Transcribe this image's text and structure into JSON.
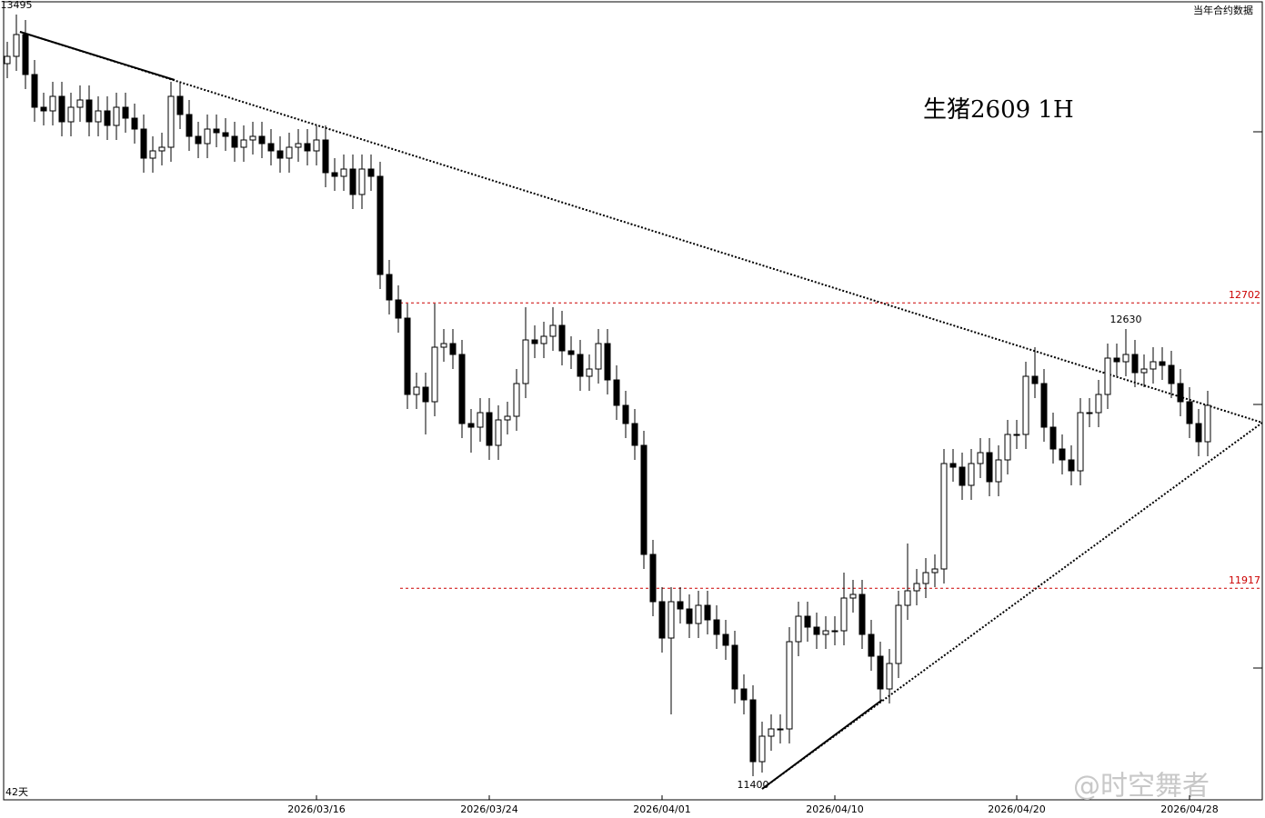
{
  "chart_data": {
    "type": "candlestick",
    "title": "生猪2609 1H",
    "corner_text": "当年合约数据",
    "period_text": "42天",
    "watermark": "@时空舞者",
    "ylim": [
      11335,
      13535
    ],
    "up_color": "#ffffff",
    "down_color": "#000000",
    "line_color": "#000000",
    "xticks": [
      {
        "value": 34,
        "label": "2026/03/16"
      },
      {
        "value": 53,
        "label": "2026/03/24"
      },
      {
        "value": 72,
        "label": "2026/04/01"
      },
      {
        "value": 91,
        "label": "2026/04/10"
      },
      {
        "value": 111,
        "label": "2026/04/20"
      },
      {
        "value": 130,
        "label": "2026/04/28"
      }
    ],
    "hlines": [
      {
        "value": 12702,
        "color": "#cc0000"
      },
      {
        "value": 11917,
        "color": "#cc0000"
      }
    ],
    "annotations": [
      {
        "index": 1,
        "value": 13495,
        "position": "above"
      },
      {
        "index": 123,
        "value": 12630,
        "position": "above"
      },
      {
        "index": 82,
        "value": 11400,
        "position": "below"
      }
    ],
    "ohlc": [
      [
        13360,
        13420,
        13320,
        13380
      ],
      [
        13380,
        13495,
        13340,
        13440
      ],
      [
        13440,
        13480,
        13290,
        13330
      ],
      [
        13330,
        13370,
        13200,
        13240
      ],
      [
        13240,
        13280,
        13190,
        13230
      ],
      [
        13230,
        13310,
        13190,
        13270
      ],
      [
        13270,
        13310,
        13160,
        13200
      ],
      [
        13200,
        13280,
        13160,
        13240
      ],
      [
        13240,
        13300,
        13200,
        13260
      ],
      [
        13260,
        13300,
        13160,
        13200
      ],
      [
        13200,
        13270,
        13160,
        13230
      ],
      [
        13230,
        13270,
        13150,
        13190
      ],
      [
        13190,
        13280,
        13150,
        13240
      ],
      [
        13240,
        13280,
        13170,
        13210
      ],
      [
        13210,
        13250,
        13140,
        13180
      ],
      [
        13180,
        13220,
        13060,
        13100
      ],
      [
        13100,
        13160,
        13060,
        13120
      ],
      [
        13120,
        13170,
        13080,
        13130
      ],
      [
        13130,
        13310,
        13090,
        13270
      ],
      [
        13270,
        13310,
        13180,
        13220
      ],
      [
        13220,
        13260,
        13120,
        13160
      ],
      [
        13160,
        13200,
        13100,
        13140
      ],
      [
        13140,
        13220,
        13100,
        13180
      ],
      [
        13180,
        13220,
        13130,
        13170
      ],
      [
        13170,
        13210,
        13120,
        13160
      ],
      [
        13160,
        13200,
        13090,
        13130
      ],
      [
        13130,
        13190,
        13090,
        13150
      ],
      [
        13150,
        13200,
        13110,
        13160
      ],
      [
        13160,
        13200,
        13100,
        13140
      ],
      [
        13140,
        13180,
        13080,
        13120
      ],
      [
        13120,
        13160,
        13060,
        13100
      ],
      [
        13100,
        13170,
        13060,
        13130
      ],
      [
        13130,
        13180,
        13090,
        13140
      ],
      [
        13140,
        13180,
        13080,
        13120
      ],
      [
        13120,
        13190,
        13080,
        13150
      ],
      [
        13150,
        13190,
        13020,
        13060
      ],
      [
        13060,
        13100,
        13010,
        13050
      ],
      [
        13050,
        13110,
        13010,
        13070
      ],
      [
        13070,
        13110,
        12960,
        13000
      ],
      [
        13000,
        13110,
        12960,
        13070
      ],
      [
        13070,
        13110,
        13010,
        13050
      ],
      [
        13050,
        13090,
        12740,
        12780
      ],
      [
        12780,
        12820,
        12670,
        12710
      ],
      [
        12710,
        12750,
        12620,
        12660
      ],
      [
        12660,
        12700,
        12410,
        12450
      ],
      [
        12450,
        12510,
        12410,
        12470
      ],
      [
        12470,
        12510,
        12340,
        12430
      ],
      [
        12430,
        12700,
        12390,
        12580
      ],
      [
        12580,
        12630,
        12540,
        12590
      ],
      [
        12590,
        12630,
        12520,
        12560
      ],
      [
        12560,
        12600,
        12330,
        12370
      ],
      [
        12370,
        12410,
        12290,
        12360
      ],
      [
        12360,
        12440,
        12320,
        12400
      ],
      [
        12400,
        12440,
        12270,
        12310
      ],
      [
        12310,
        12420,
        12270,
        12380
      ],
      [
        12380,
        12430,
        12340,
        12390
      ],
      [
        12390,
        12520,
        12350,
        12480
      ],
      [
        12480,
        12690,
        12440,
        12600
      ],
      [
        12600,
        12640,
        12550,
        12590
      ],
      [
        12590,
        12650,
        12550,
        12610
      ],
      [
        12610,
        12690,
        12570,
        12640
      ],
      [
        12640,
        12680,
        12530,
        12570
      ],
      [
        12570,
        12610,
        12520,
        12560
      ],
      [
        12560,
        12600,
        12460,
        12500
      ],
      [
        12500,
        12560,
        12460,
        12520
      ],
      [
        12520,
        12630,
        12480,
        12590
      ],
      [
        12590,
        12630,
        12450,
        12490
      ],
      [
        12490,
        12530,
        12380,
        12420
      ],
      [
        12420,
        12460,
        12330,
        12370
      ],
      [
        12370,
        12410,
        12270,
        12310
      ],
      [
        12310,
        12350,
        11970,
        12010
      ],
      [
        12010,
        12050,
        11840,
        11880
      ],
      [
        11880,
        11920,
        11740,
        11780
      ],
      [
        11780,
        11920,
        11570,
        11880
      ],
      [
        11880,
        11920,
        11820,
        11860
      ],
      [
        11860,
        11900,
        11780,
        11820
      ],
      [
        11820,
        11910,
        11780,
        11870
      ],
      [
        11870,
        11910,
        11790,
        11830
      ],
      [
        11830,
        11870,
        11750,
        11790
      ],
      [
        11790,
        11830,
        11720,
        11760
      ],
      [
        11760,
        11800,
        11600,
        11640
      ],
      [
        11640,
        11680,
        11570,
        11610
      ],
      [
        11610,
        11650,
        11400,
        11440
      ],
      [
        11440,
        11550,
        11410,
        11510
      ],
      [
        11510,
        11570,
        11470,
        11530
      ],
      [
        11530,
        11570,
        11490,
        11530
      ],
      [
        11530,
        11810,
        11490,
        11770
      ],
      [
        11770,
        11880,
        11730,
        11840
      ],
      [
        11840,
        11880,
        11770,
        11810
      ],
      [
        11810,
        11850,
        11750,
        11790
      ],
      [
        11790,
        11840,
        11750,
        11800
      ],
      [
        11800,
        11840,
        11760,
        11800
      ],
      [
        11800,
        11960,
        11760,
        11890
      ],
      [
        11890,
        11940,
        11850,
        11900
      ],
      [
        11900,
        11940,
        11750,
        11790
      ],
      [
        11790,
        11830,
        11690,
        11730
      ],
      [
        11730,
        11770,
        11600,
        11640
      ],
      [
        11640,
        11750,
        11600,
        11710
      ],
      [
        11710,
        11910,
        11670,
        11870
      ],
      [
        11870,
        12040,
        11830,
        11910
      ],
      [
        11910,
        11970,
        11870,
        11930
      ],
      [
        11930,
        12000,
        11890,
        11960
      ],
      [
        11960,
        12010,
        11920,
        11970
      ],
      [
        11970,
        12300,
        11930,
        12260
      ],
      [
        12260,
        12300,
        12210,
        12250
      ],
      [
        12250,
        12290,
        12160,
        12200
      ],
      [
        12200,
        12300,
        12160,
        12260
      ],
      [
        12260,
        12330,
        12220,
        12290
      ],
      [
        12290,
        12330,
        12170,
        12210
      ],
      [
        12210,
        12310,
        12170,
        12270
      ],
      [
        12270,
        12380,
        12230,
        12340
      ],
      [
        12340,
        12380,
        12300,
        12340
      ],
      [
        12340,
        12540,
        12300,
        12500
      ],
      [
        12500,
        12580,
        12440,
        12480
      ],
      [
        12480,
        12520,
        12320,
        12360
      ],
      [
        12360,
        12400,
        12260,
        12300
      ],
      [
        12300,
        12340,
        12230,
        12270
      ],
      [
        12270,
        12310,
        12200,
        12240
      ],
      [
        12240,
        12440,
        12200,
        12400
      ],
      [
        12400,
        12440,
        12360,
        12400
      ],
      [
        12400,
        12490,
        12360,
        12450
      ],
      [
        12450,
        12590,
        12410,
        12550
      ],
      [
        12550,
        12590,
        12500,
        12540
      ],
      [
        12540,
        12630,
        12500,
        12560
      ],
      [
        12560,
        12600,
        12470,
        12510
      ],
      [
        12510,
        12560,
        12470,
        12520
      ],
      [
        12520,
        12580,
        12480,
        12540
      ],
      [
        12540,
        12580,
        12490,
        12530
      ],
      [
        12530,
        12570,
        12440,
        12480
      ],
      [
        12480,
        12520,
        12390,
        12430
      ],
      [
        12430,
        12470,
        12330,
        12370
      ],
      [
        12370,
        12410,
        12280,
        12320
      ],
      [
        12320,
        12460,
        12280,
        12420
      ]
    ]
  }
}
